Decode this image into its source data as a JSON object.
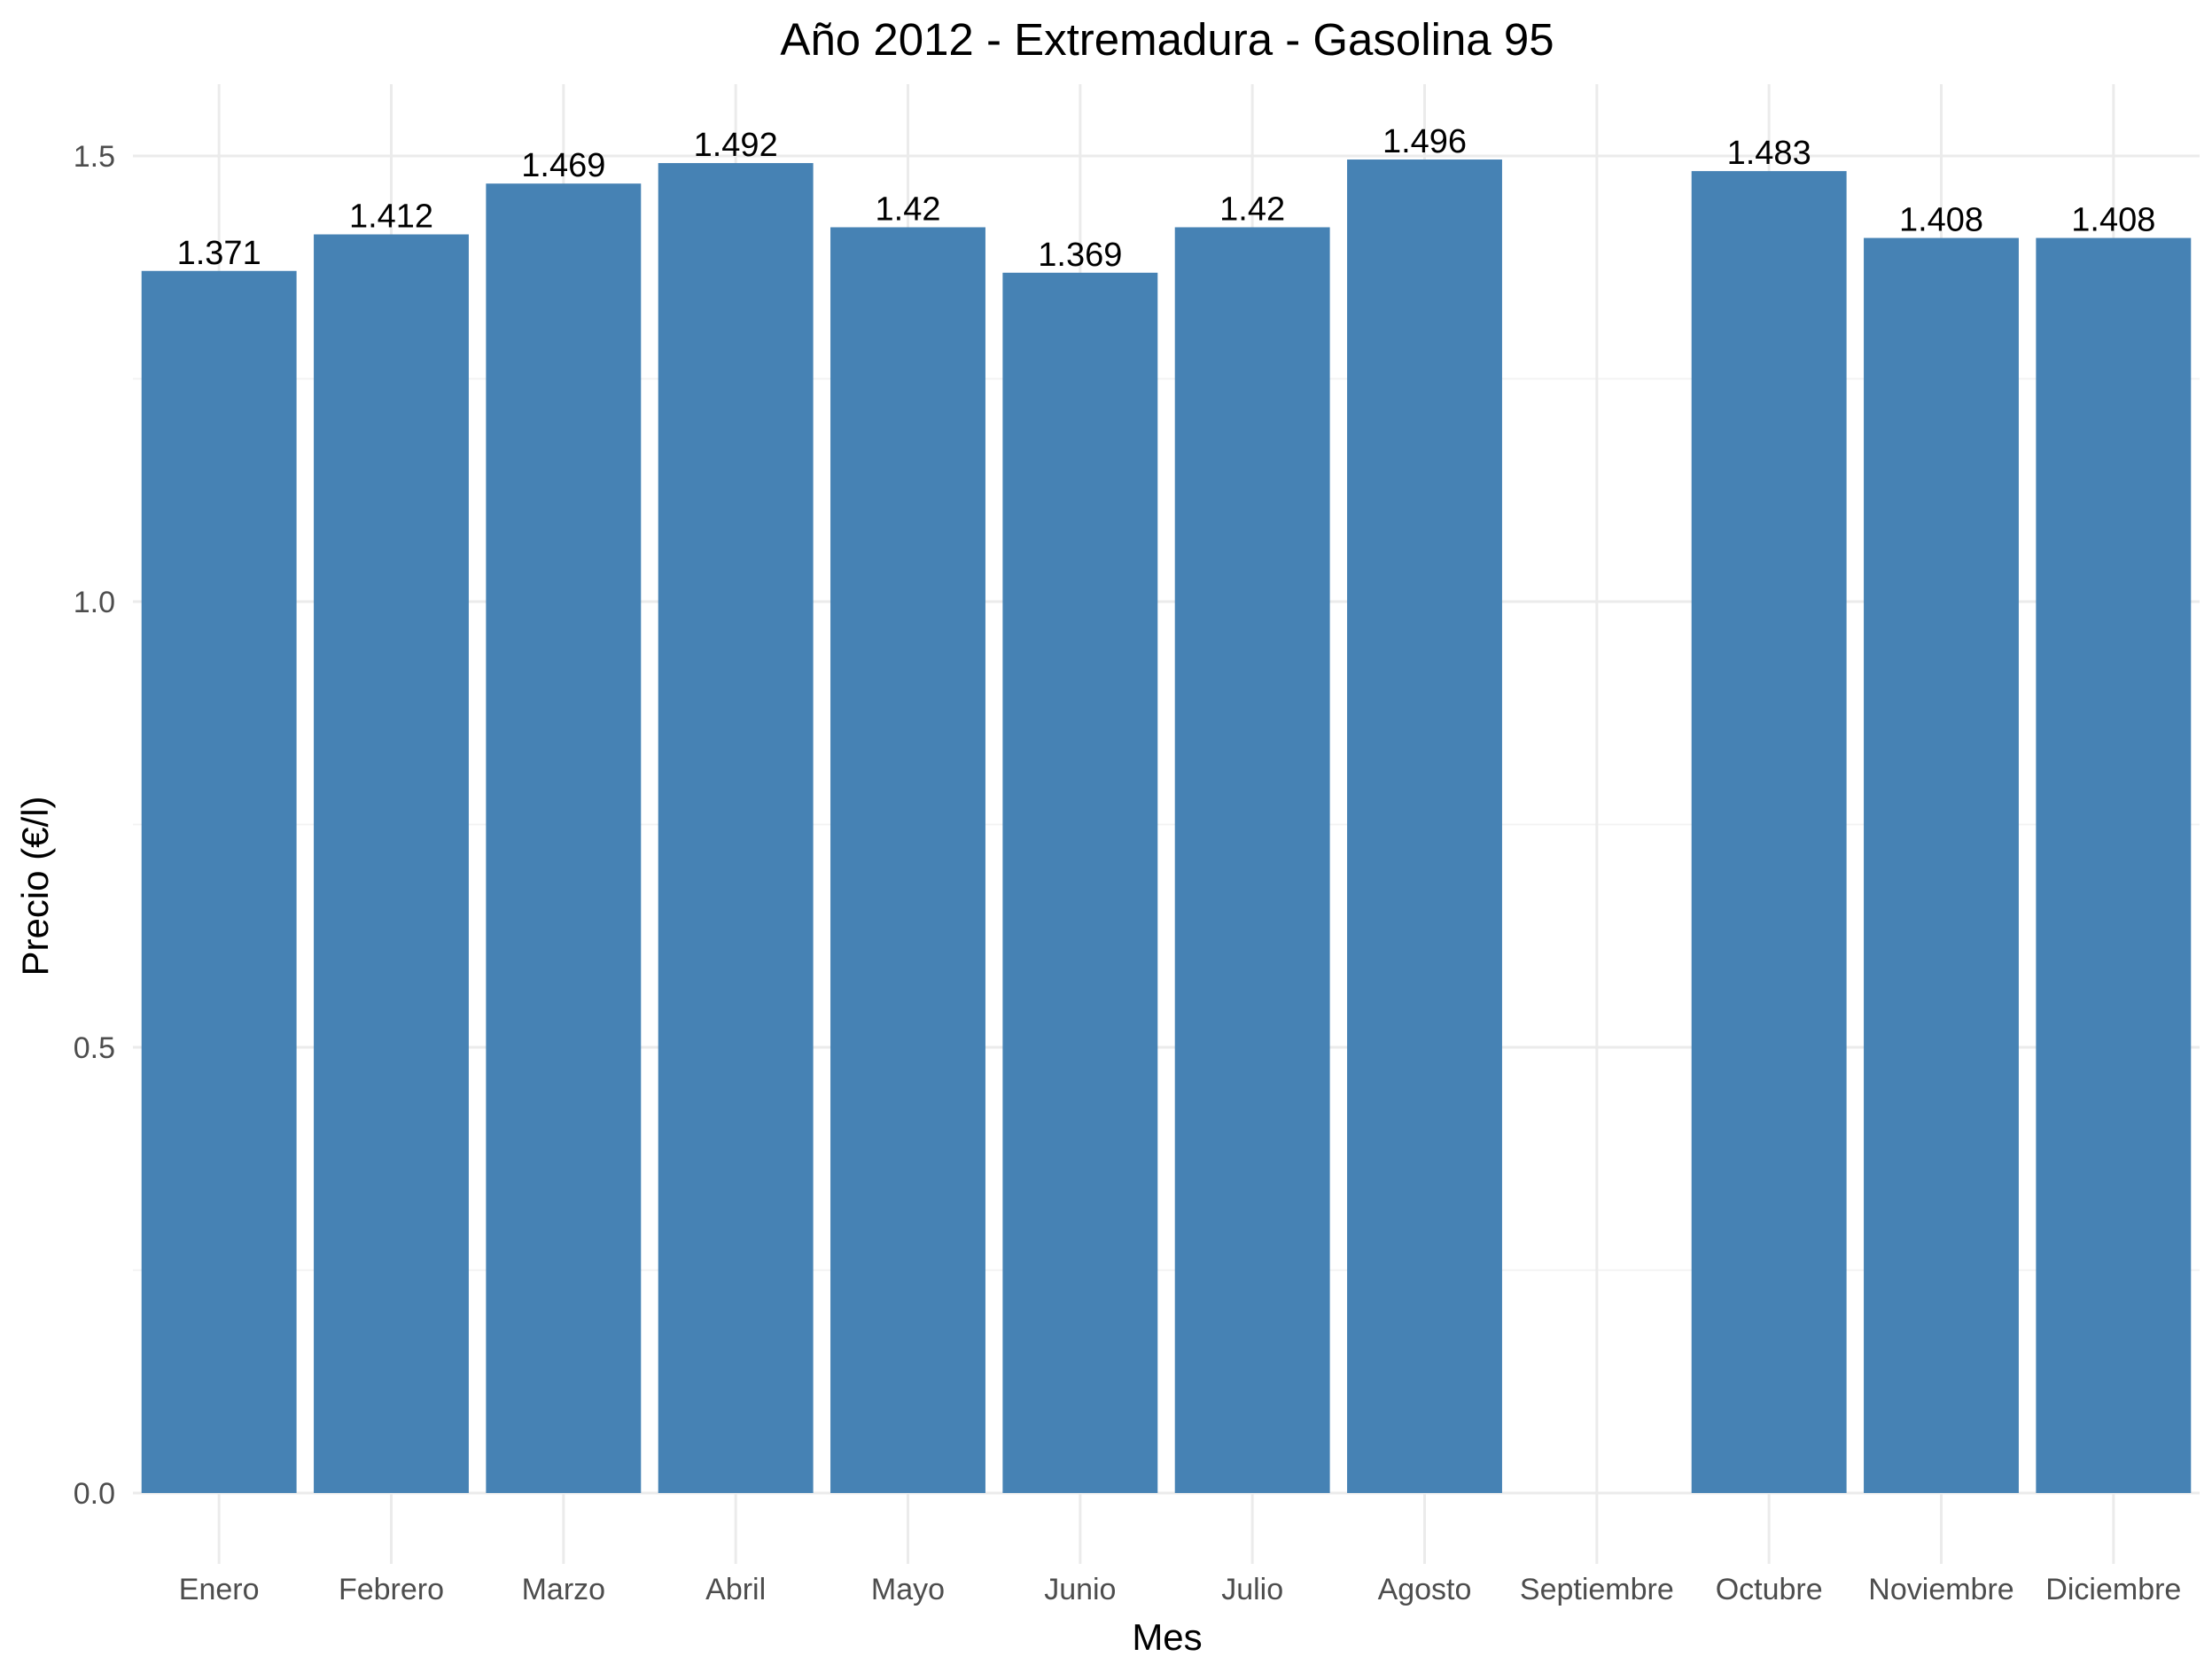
{
  "chart_data": {
    "type": "bar",
    "title": "Año 2012 - Extremadura - Gasolina 95",
    "xlabel": "Mes",
    "ylabel": "Precio (€/l)",
    "categories": [
      "Enero",
      "Febrero",
      "Marzo",
      "Abril",
      "Mayo",
      "Junio",
      "Julio",
      "Agosto",
      "Septiembre",
      "Octubre",
      "Noviembre",
      "Diciembre"
    ],
    "values": [
      1.371,
      1.412,
      1.469,
      1.492,
      1.42,
      1.369,
      1.42,
      1.496,
      null,
      1.483,
      1.408,
      1.408
    ],
    "value_labels": [
      "1.371",
      "1.412",
      "1.469",
      "1.492",
      "1.42",
      "1.369",
      "1.42",
      "1.496",
      "",
      "1.483",
      "1.408",
      "1.408"
    ],
    "yticks": [
      0.0,
      0.5,
      1.0,
      1.5
    ],
    "ytick_labels": [
      "0.0",
      "0.5",
      "1.0",
      "1.5"
    ],
    "ylim": [
      0,
      1.575
    ],
    "grid": true,
    "legend": "none",
    "bar_color": "#4682b4"
  }
}
